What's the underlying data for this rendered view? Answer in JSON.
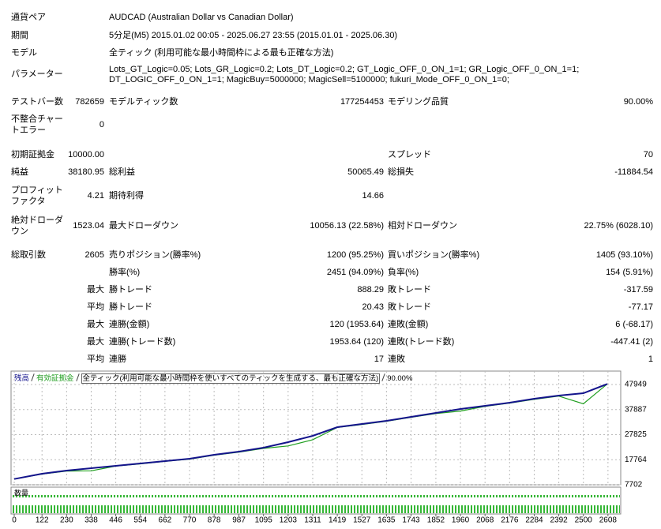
{
  "header": {
    "rows": [
      {
        "label": "通貨ペア",
        "value": "AUDCAD (Australian Dollar vs Canadian Dollar)"
      },
      {
        "label": "期間",
        "value": "5分足(M5) 2015.01.02 00:05 - 2025.06.27 23:55 (2015.01.01 - 2025.06.30)"
      },
      {
        "label": "モデル",
        "value": "全ティック (利用可能な最小時間枠による最も正確な方法)"
      }
    ],
    "parameters": {
      "label": "パラメーター",
      "lines": [
        "Lots_GT_Logic=0.05; Lots_GR_Logic=0.2; Lots_DT_Logic=0.2; GT_Logic_OFF_0_ON_1=1; GR_Logic_OFF_0_ON_1=1;",
        "DT_LOGIC_OFF_0_ON_1=1; MagicBuy=5000000; MagicSell=5100000; fukuri_Mode_OFF_0_ON_1=0;"
      ]
    }
  },
  "stats": {
    "rows": [
      [
        "テストバー数",
        "782659",
        "モデルティック数",
        "177254453",
        "モデリング品質",
        "90.00%"
      ],
      [
        "不整合チャートエラー",
        "0",
        null,
        null,
        null,
        null
      ],
      [
        "初期証拠金",
        "10000.00",
        null,
        null,
        "スプレッド",
        "70"
      ],
      [
        "純益",
        "38180.95",
        "総利益",
        "50065.49",
        "総損失",
        "-11884.54"
      ],
      [
        "プロフィットファクタ",
        "4.21",
        "期待利得",
        "14.66",
        null,
        null
      ],
      [
        "絶対ドローダウン",
        "1523.04",
        "最大ドローダウン",
        "10056.13 (22.58%)",
        "相対ドローダウン",
        "22.75% (6028.10)"
      ],
      [
        "総取引数",
        "2605",
        "売りポジション(勝率%)",
        "1200 (95.25%)",
        "買いポジション(勝率%)",
        "1405 (93.10%)"
      ],
      [
        null,
        null,
        "勝率(%)",
        "2451 (94.09%)",
        "負率(%)",
        "154 (5.91%)"
      ],
      [
        null,
        "最大",
        "勝トレード",
        "888.29",
        "敗トレード",
        "-317.59"
      ],
      [
        null,
        "平均",
        "勝トレード",
        "20.43",
        "敗トレード",
        "-77.17"
      ],
      [
        null,
        "最大",
        "連勝(金額)",
        "120 (1953.64)",
        "連敗(金額)",
        "6 (-68.17)"
      ],
      [
        null,
        "最大",
        "連勝(トレード数)",
        "1953.64 (120)",
        "連敗(トレード数)",
        "-447.41 (2)"
      ],
      [
        null,
        "平均",
        "連勝",
        "17",
        "連敗",
        "1"
      ]
    ]
  },
  "chart_data": {
    "type": "line",
    "subtitle": "全ティック(利用可能な最小時間枠を使いすべてのティックを生成する、最も正確な方法)",
    "quality": "90.00%",
    "volume_label": "数量",
    "x": [
      0,
      122,
      230,
      338,
      446,
      554,
      662,
      770,
      878,
      987,
      1095,
      1203,
      1311,
      1419,
      1527,
      1635,
      1743,
      1852,
      1960,
      2068,
      2176,
      2284,
      2392,
      2500,
      2605
    ],
    "series": [
      {
        "name": "残高",
        "color": "#14148c",
        "values": [
          10000,
          12140,
          13400,
          14360,
          15310,
          16260,
          17210,
          18160,
          19740,
          21010,
          22600,
          24810,
          27350,
          30830,
          32100,
          33370,
          34950,
          36540,
          38120,
          39390,
          40660,
          42240,
          43510,
          44460,
          48180.95
        ]
      },
      {
        "name": "有効証拠金",
        "color": "#1f9e1f",
        "values": [
          10000,
          12000,
          13200,
          13300,
          15200,
          16100,
          17100,
          18000,
          19600,
          20800,
          22300,
          23300,
          25800,
          30700,
          31900,
          33200,
          34800,
          36300,
          37300,
          39200,
          40500,
          42000,
          43300,
          40200,
          48180.95
        ]
      }
    ],
    "xlim": [
      -14,
      2664
    ],
    "ylim": [
      7702,
      52700
    ],
    "xticks": [
      0,
      122,
      230,
      338,
      446,
      554,
      662,
      770,
      878,
      987,
      1095,
      1203,
      1311,
      1419,
      1527,
      1635,
      1743,
      1852,
      1960,
      2068,
      2176,
      2284,
      2392,
      2500,
      2608
    ],
    "yticks": [
      7702,
      17764,
      27825,
      37887,
      47949
    ],
    "grid": true
  }
}
